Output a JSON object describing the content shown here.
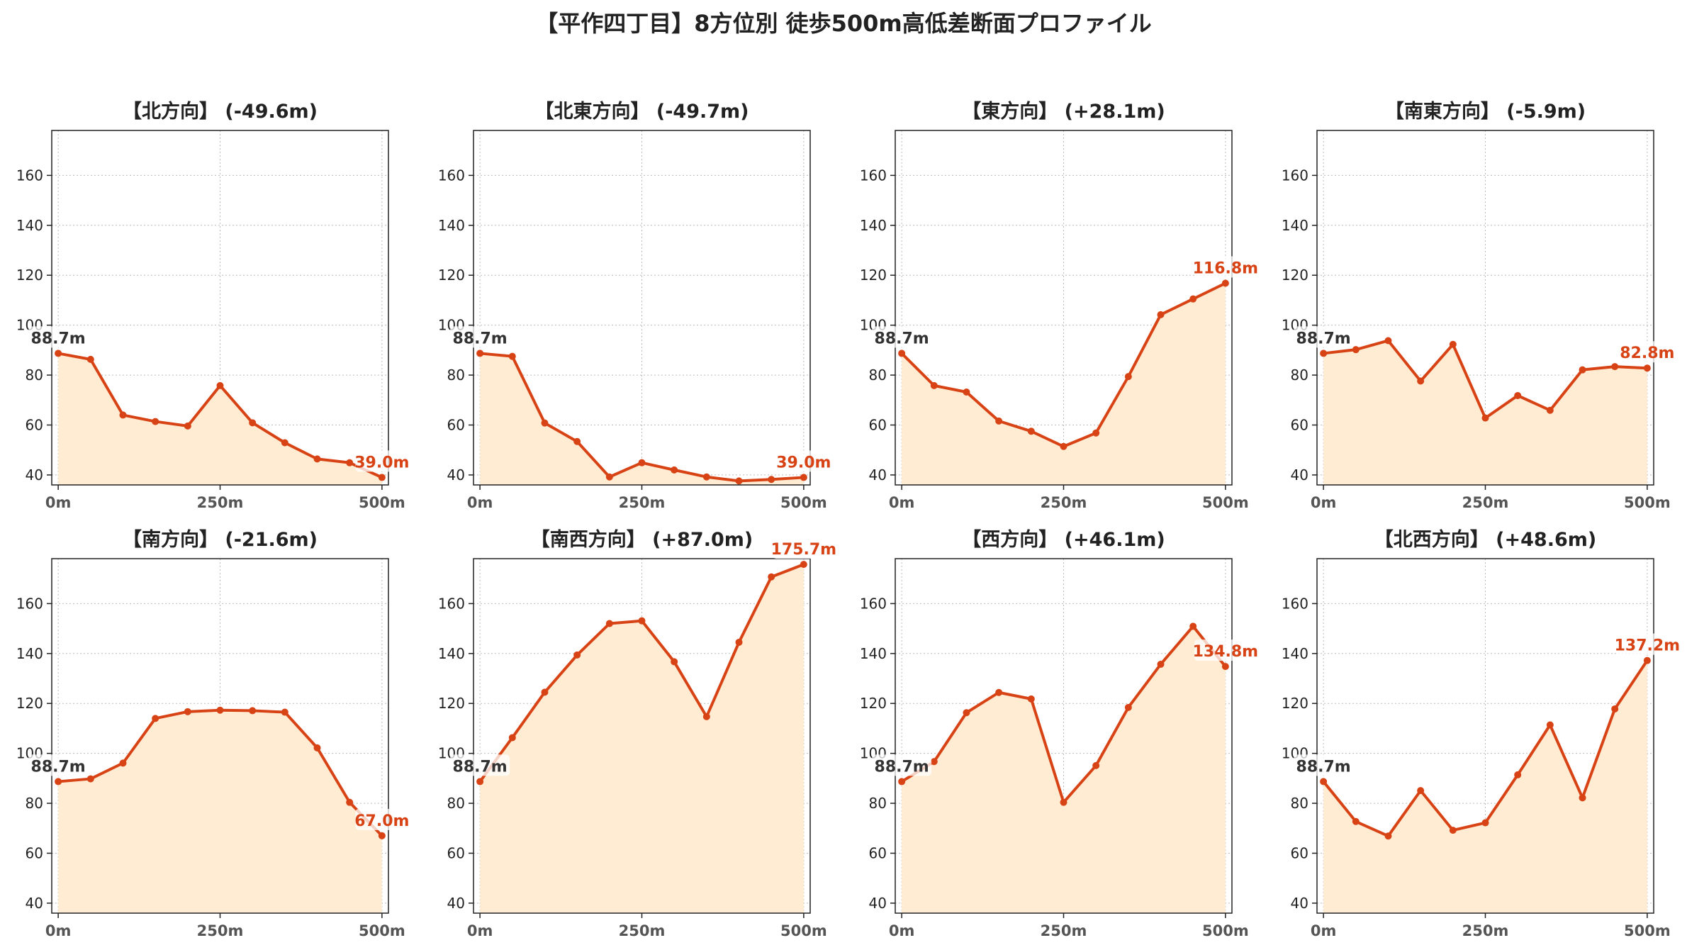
{
  "figure": {
    "title": "【平作四丁目】8方位別 徒歩500m高低差断面プロファイル"
  },
  "style": {
    "line_color": "#d84315",
    "fill_color": "#ffecd2",
    "start_label_color": "#333333",
    "grid_color": "#bbbbbb"
  },
  "chart_data": [
    {
      "type": "area",
      "title": "【北方向】 (-49.6m)",
      "x": [
        0,
        50,
        100,
        150,
        200,
        250,
        300,
        350,
        400,
        450,
        500
      ],
      "values": [
        88.7,
        86.3,
        64.0,
        61.4,
        59.6,
        75.8,
        60.9,
        52.9,
        46.4,
        44.9,
        39.0
      ],
      "start_label": "88.7m",
      "end_label": "39.0m",
      "xticks": [
        "0m",
        "250m",
        "500m"
      ],
      "yticks": [
        40,
        60,
        80,
        100,
        120,
        140,
        160
      ],
      "ylim": [
        36,
        178
      ],
      "xlim": [
        -10,
        510
      ],
      "grid": true
    },
    {
      "type": "area",
      "title": "【北東方向】 (-49.7m)",
      "x": [
        0,
        50,
        100,
        150,
        200,
        250,
        300,
        350,
        400,
        450,
        500
      ],
      "values": [
        88.7,
        87.5,
        60.8,
        53.4,
        39.2,
        44.9,
        42.0,
        39.2,
        37.6,
        38.2,
        39.0
      ],
      "start_label": "88.7m",
      "end_label": "39.0m",
      "xticks": [
        "0m",
        "250m",
        "500m"
      ],
      "yticks": [
        40,
        60,
        80,
        100,
        120,
        140,
        160
      ],
      "ylim": [
        36,
        178
      ],
      "xlim": [
        -10,
        510
      ],
      "grid": true
    },
    {
      "type": "area",
      "title": "【東方向】 (+28.1m)",
      "x": [
        0,
        50,
        100,
        150,
        200,
        250,
        300,
        350,
        400,
        450,
        500
      ],
      "values": [
        88.7,
        75.8,
        73.2,
        61.6,
        57.5,
        51.4,
        56.8,
        79.4,
        104.2,
        110.5,
        116.8
      ],
      "start_label": "88.7m",
      "end_label": "116.8m",
      "xticks": [
        "0m",
        "250m",
        "500m"
      ],
      "yticks": [
        40,
        60,
        80,
        100,
        120,
        140,
        160
      ],
      "ylim": [
        36,
        178
      ],
      "xlim": [
        -10,
        510
      ],
      "grid": true
    },
    {
      "type": "area",
      "title": "【南東方向】 (-5.9m)",
      "x": [
        0,
        50,
        100,
        150,
        200,
        250,
        300,
        350,
        400,
        450,
        500
      ],
      "values": [
        88.7,
        90.2,
        93.8,
        77.6,
        92.3,
        62.8,
        71.8,
        65.9,
        82.1,
        83.4,
        82.8
      ],
      "start_label": "88.7m",
      "end_label": "82.8m",
      "xticks": [
        "0m",
        "250m",
        "500m"
      ],
      "yticks": [
        40,
        60,
        80,
        100,
        120,
        140,
        160
      ],
      "ylim": [
        36,
        178
      ],
      "xlim": [
        -10,
        510
      ],
      "grid": true
    },
    {
      "type": "area",
      "title": "【南方向】 (-21.6m)",
      "x": [
        0,
        50,
        100,
        150,
        200,
        250,
        300,
        350,
        400,
        450,
        500
      ],
      "values": [
        88.7,
        89.8,
        96.1,
        114.0,
        116.7,
        117.3,
        117.1,
        116.5,
        102.2,
        80.4,
        67.0
      ],
      "start_label": "88.7m",
      "end_label": "67.0m",
      "xticks": [
        "0m",
        "250m",
        "500m"
      ],
      "yticks": [
        40,
        60,
        80,
        100,
        120,
        140,
        160
      ],
      "ylim": [
        36,
        178
      ],
      "xlim": [
        -10,
        510
      ],
      "grid": true
    },
    {
      "type": "area",
      "title": "【南西方向】 (+87.0m)",
      "x": [
        0,
        50,
        100,
        150,
        200,
        250,
        300,
        350,
        400,
        450,
        500
      ],
      "values": [
        88.7,
        106.3,
        124.5,
        139.4,
        152.0,
        153.1,
        136.7,
        114.7,
        144.5,
        170.7,
        175.7
      ],
      "start_label": "88.7m",
      "end_label": "175.7m",
      "xticks": [
        "0m",
        "250m",
        "500m"
      ],
      "yticks": [
        40,
        60,
        80,
        100,
        120,
        140,
        160
      ],
      "ylim": [
        36,
        178
      ],
      "xlim": [
        -10,
        510
      ],
      "grid": true
    },
    {
      "type": "area",
      "title": "【西方向】 (+46.1m)",
      "x": [
        0,
        50,
        100,
        150,
        200,
        250,
        300,
        350,
        400,
        450,
        500
      ],
      "values": [
        88.7,
        96.7,
        116.3,
        124.4,
        121.8,
        80.4,
        95.1,
        118.4,
        135.7,
        150.9,
        134.8
      ],
      "start_label": "88.7m",
      "end_label": "134.8m",
      "xticks": [
        "0m",
        "250m",
        "500m"
      ],
      "yticks": [
        40,
        60,
        80,
        100,
        120,
        140,
        160
      ],
      "ylim": [
        36,
        178
      ],
      "xlim": [
        -10,
        510
      ],
      "grid": true
    },
    {
      "type": "area",
      "title": "【北西方向】 (+48.6m)",
      "x": [
        0,
        50,
        100,
        150,
        200,
        250,
        300,
        350,
        400,
        450,
        500
      ],
      "values": [
        88.7,
        72.7,
        66.9,
        85.1,
        69.2,
        72.2,
        91.4,
        111.4,
        82.2,
        117.8,
        137.2
      ],
      "start_label": "88.7m",
      "end_label": "137.2m",
      "xticks": [
        "0m",
        "250m",
        "500m"
      ],
      "yticks": [
        40,
        60,
        80,
        100,
        120,
        140,
        160
      ],
      "ylim": [
        36,
        178
      ],
      "xlim": [
        -10,
        510
      ],
      "grid": true
    }
  ]
}
